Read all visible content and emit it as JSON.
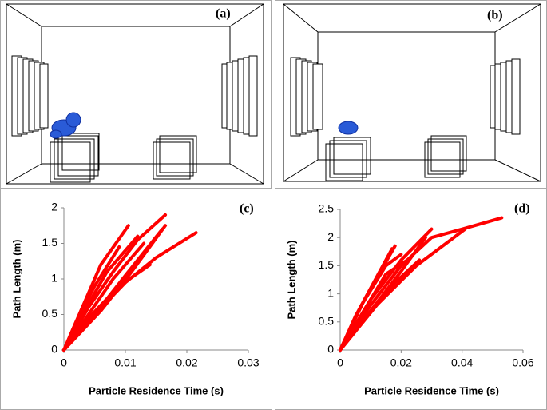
{
  "panels": [
    {
      "label": "(a)"
    },
    {
      "label": "(b)"
    }
  ],
  "chart_data": [
    {
      "type": "line",
      "label": "(c)",
      "y_label": "Path Length (m)",
      "x_label": "Particle Residence Time (s)",
      "color": "#ff0000",
      "xlim": [
        0,
        0.03
      ],
      "xticks": [
        0,
        0.01,
        0.02,
        0.03
      ],
      "ylim": [
        0,
        2
      ],
      "yticks": [
        0,
        0.5,
        1,
        1.5,
        2
      ],
      "series": [
        {
          "x": [
            0,
            0.004,
            0.008,
            0.012,
            0.0165
          ],
          "values": [
            0,
            0.6,
            1.1,
            1.55,
            1.9
          ]
        },
        {
          "x": [
            0,
            0.005,
            0.01,
            0.015,
            0.0215
          ],
          "values": [
            0,
            0.5,
            0.95,
            1.3,
            1.65
          ]
        },
        {
          "x": [
            0,
            0.003,
            0.006,
            0.0105
          ],
          "values": [
            0,
            0.6,
            1.2,
            1.75
          ]
        },
        {
          "x": [
            0,
            0.004,
            0.008,
            0.013
          ],
          "values": [
            0,
            0.5,
            1.0,
            1.5
          ]
        },
        {
          "x": [
            0,
            0.005,
            0.01,
            0.016
          ],
          "values": [
            0,
            0.5,
            1.05,
            1.7
          ]
        },
        {
          "x": [
            0,
            0.004,
            0.009,
            0.014
          ],
          "values": [
            0,
            0.45,
            0.9,
            1.2
          ]
        },
        {
          "x": [
            0,
            0.003,
            0.007,
            0.012
          ],
          "values": [
            0,
            0.5,
            1.1,
            1.6
          ]
        },
        {
          "x": [
            0,
            0.006,
            0.011,
            0.0165
          ],
          "values": [
            0,
            0.55,
            1.1,
            1.75
          ]
        },
        {
          "x": [
            0,
            0.002,
            0.005,
            0.009
          ],
          "values": [
            0,
            0.4,
            0.9,
            1.45
          ]
        }
      ]
    },
    {
      "type": "line",
      "label": "(d)",
      "y_label": "Path Length (m)",
      "x_label": "Particle Residence Time (s)",
      "color": "#ff0000",
      "xlim": [
        0,
        0.06
      ],
      "xticks": [
        0,
        0.02,
        0.04,
        0.06
      ],
      "ylim": [
        0,
        2.5
      ],
      "yticks": [
        0,
        0.5,
        1,
        1.5,
        2,
        2.5
      ],
      "series": [
        {
          "x": [
            0,
            0.01,
            0.02,
            0.03,
            0.04,
            0.053
          ],
          "values": [
            0,
            0.8,
            1.5,
            2.0,
            2.15,
            2.35
          ]
        },
        {
          "x": [
            0,
            0.01,
            0.02,
            0.03
          ],
          "values": [
            0,
            0.9,
            1.6,
            2.15
          ]
        },
        {
          "x": [
            0,
            0.008,
            0.018
          ],
          "values": [
            0,
            0.9,
            1.85
          ]
        },
        {
          "x": [
            0,
            0.01,
            0.02,
            0.028
          ],
          "values": [
            0,
            0.7,
            1.4,
            2.0
          ]
        },
        {
          "x": [
            0,
            0.012,
            0.025,
            0.041
          ],
          "values": [
            0,
            0.8,
            1.5,
            2.15
          ]
        },
        {
          "x": [
            0,
            0.007,
            0.015,
            0.02
          ],
          "values": [
            0,
            0.8,
            1.5,
            1.7
          ]
        },
        {
          "x": [
            0,
            0.01,
            0.015,
            0.022
          ],
          "values": [
            0,
            0.9,
            1.35,
            1.6
          ]
        },
        {
          "x": [
            0,
            0.012,
            0.018,
            0.026
          ],
          "values": [
            0,
            0.8,
            1.2,
            1.6
          ]
        },
        {
          "x": [
            0,
            0.005,
            0.012,
            0.017
          ],
          "values": [
            0,
            0.6,
            1.3,
            1.8
          ]
        }
      ]
    }
  ]
}
